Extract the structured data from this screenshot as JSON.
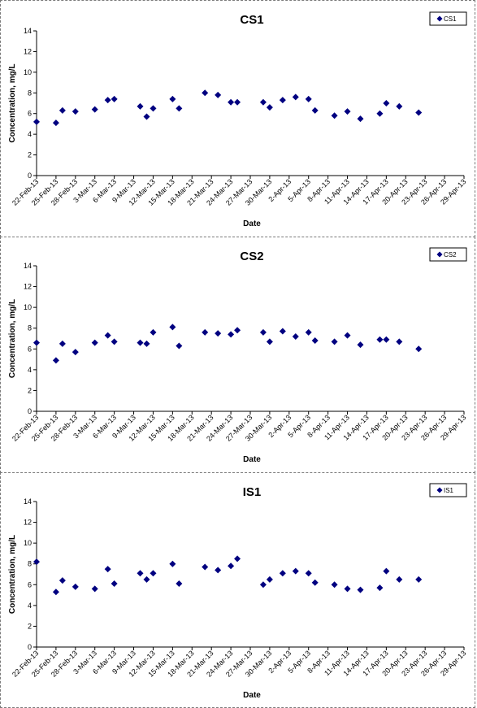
{
  "charts": [
    {
      "type": "scatter",
      "title": "CS1",
      "xlabel": "Date",
      "ylabel": "Concentration, mg/L",
      "ylim": [
        0,
        14
      ],
      "yticks": [
        0,
        2,
        4,
        6,
        8,
        10,
        12,
        14
      ],
      "x_tick_labels": [
        "22-Feb-13",
        "25-Feb-13",
        "28-Feb-13",
        "3-Mar-13",
        "6-Mar-13",
        "9-Mar-13",
        "12-Mar-13",
        "15-Mar-13",
        "18-Mar-13",
        "21-Mar-13",
        "24-Mar-13",
        "27-Mar-13",
        "30-Mar-13",
        "2-Apr-13",
        "5-Apr-13",
        "8-Apr-13",
        "11-Apr-13",
        "14-Apr-13",
        "17-Apr-13",
        "20-Apr-13",
        "23-Apr-13",
        "26-Apr-13",
        "29-Apr-13"
      ],
      "legend": "top-right",
      "grid": false,
      "marker_color": "#000080",
      "series": [
        {
          "name": "CS1",
          "points": [
            [
              "22-Feb-13",
              5.2
            ],
            [
              "25-Feb-13",
              5.1
            ],
            [
              "26-Feb-13",
              6.3
            ],
            [
              "28-Feb-13",
              6.2
            ],
            [
              "3-Mar-13",
              6.4
            ],
            [
              "5-Mar-13",
              7.3
            ],
            [
              "6-Mar-13",
              7.4
            ],
            [
              "10-Mar-13",
              6.7
            ],
            [
              "11-Mar-13",
              5.7
            ],
            [
              "12-Mar-13",
              6.5
            ],
            [
              "15-Mar-13",
              7.4
            ],
            [
              "16-Mar-13",
              6.5
            ],
            [
              "20-Mar-13",
              8.0
            ],
            [
              "22-Mar-13",
              7.8
            ],
            [
              "24-Mar-13",
              7.1
            ],
            [
              "25-Mar-13",
              7.1
            ],
            [
              "29-Mar-13",
              7.1
            ],
            [
              "30-Mar-13",
              6.6
            ],
            [
              "1-Apr-13",
              7.3
            ],
            [
              "3-Apr-13",
              7.6
            ],
            [
              "5-Apr-13",
              7.4
            ],
            [
              "6-Apr-13",
              6.3
            ],
            [
              "9-Apr-13",
              5.8
            ],
            [
              "11-Apr-13",
              6.2
            ],
            [
              "13-Apr-13",
              5.5
            ],
            [
              "16-Apr-13",
              6.0
            ],
            [
              "17-Apr-13",
              7.0
            ],
            [
              "19-Apr-13",
              6.7
            ],
            [
              "22-Apr-13",
              6.1
            ]
          ]
        }
      ]
    },
    {
      "type": "scatter",
      "title": "CS2",
      "xlabel": "Date",
      "ylabel": "Concentration, mg/L",
      "ylim": [
        0,
        14
      ],
      "yticks": [
        0,
        2,
        4,
        6,
        8,
        10,
        12,
        14
      ],
      "x_tick_labels": [
        "22-Feb-13",
        "25-Feb-13",
        "28-Feb-13",
        "3-Mar-13",
        "6-Mar-13",
        "9-Mar-13",
        "12-Mar-13",
        "15-Mar-13",
        "18-Mar-13",
        "21-Mar-13",
        "24-Mar-13",
        "27-Mar-13",
        "30-Mar-13",
        "2-Apr-13",
        "5-Apr-13",
        "8-Apr-13",
        "11-Apr-13",
        "14-Apr-13",
        "17-Apr-13",
        "20-Apr-13",
        "23-Apr-13",
        "26-Apr-13",
        "29-Apr-13"
      ],
      "legend": "top-right",
      "grid": false,
      "marker_color": "#000080",
      "series": [
        {
          "name": "CS2",
          "points": [
            [
              "22-Feb-13",
              6.6
            ],
            [
              "25-Feb-13",
              4.9
            ],
            [
              "26-Feb-13",
              6.5
            ],
            [
              "28-Feb-13",
              5.7
            ],
            [
              "3-Mar-13",
              6.6
            ],
            [
              "5-Mar-13",
              7.3
            ],
            [
              "6-Mar-13",
              6.7
            ],
            [
              "10-Mar-13",
              6.6
            ],
            [
              "11-Mar-13",
              6.5
            ],
            [
              "12-Mar-13",
              7.6
            ],
            [
              "15-Mar-13",
              8.1
            ],
            [
              "16-Mar-13",
              6.3
            ],
            [
              "20-Mar-13",
              7.6
            ],
            [
              "22-Mar-13",
              7.5
            ],
            [
              "24-Mar-13",
              7.4
            ],
            [
              "25-Mar-13",
              7.8
            ],
            [
              "29-Mar-13",
              7.6
            ],
            [
              "30-Mar-13",
              6.7
            ],
            [
              "1-Apr-13",
              7.7
            ],
            [
              "3-Apr-13",
              7.2
            ],
            [
              "5-Apr-13",
              7.6
            ],
            [
              "6-Apr-13",
              6.8
            ],
            [
              "9-Apr-13",
              6.7
            ],
            [
              "11-Apr-13",
              7.3
            ],
            [
              "13-Apr-13",
              6.4
            ],
            [
              "16-Apr-13",
              6.9
            ],
            [
              "17-Apr-13",
              6.9
            ],
            [
              "19-Apr-13",
              6.7
            ],
            [
              "22-Apr-13",
              6.0
            ]
          ]
        }
      ]
    },
    {
      "type": "scatter",
      "title": "IS1",
      "xlabel": "Date",
      "ylabel": "Concentration, mg/L",
      "ylim": [
        0,
        14
      ],
      "yticks": [
        0,
        2,
        4,
        6,
        8,
        10,
        12,
        14
      ],
      "x_tick_labels": [
        "22-Feb-13",
        "25-Feb-13",
        "28-Feb-13",
        "3-Mar-13",
        "6-Mar-13",
        "9-Mar-13",
        "12-Mar-13",
        "15-Mar-13",
        "18-Mar-13",
        "21-Mar-13",
        "24-Mar-13",
        "27-Mar-13",
        "30-Mar-13",
        "2-Apr-13",
        "5-Apr-13",
        "8-Apr-13",
        "11-Apr-13",
        "14-Apr-13",
        "17-Apr-13",
        "20-Apr-13",
        "23-Apr-13",
        "26-Apr-13",
        "29-Apr-13"
      ],
      "legend": "top-right",
      "grid": false,
      "marker_color": "#000080",
      "series": [
        {
          "name": "IS1",
          "points": [
            [
              "22-Feb-13",
              8.2
            ],
            [
              "25-Feb-13",
              5.3
            ],
            [
              "26-Feb-13",
              6.4
            ],
            [
              "28-Feb-13",
              5.8
            ],
            [
              "3-Mar-13",
              5.6
            ],
            [
              "5-Mar-13",
              7.5
            ],
            [
              "6-Mar-13",
              6.1
            ],
            [
              "10-Mar-13",
              7.1
            ],
            [
              "11-Mar-13",
              6.5
            ],
            [
              "12-Mar-13",
              7.1
            ],
            [
              "15-Mar-13",
              8.0
            ],
            [
              "16-Mar-13",
              6.1
            ],
            [
              "20-Mar-13",
              7.7
            ],
            [
              "22-Mar-13",
              7.4
            ],
            [
              "24-Mar-13",
              7.8
            ],
            [
              "25-Mar-13",
              8.5
            ],
            [
              "29-Mar-13",
              6.0
            ],
            [
              "30-Mar-13",
              6.5
            ],
            [
              "1-Apr-13",
              7.1
            ],
            [
              "3-Apr-13",
              7.3
            ],
            [
              "5-Apr-13",
              7.1
            ],
            [
              "6-Apr-13",
              6.2
            ],
            [
              "9-Apr-13",
              6.0
            ],
            [
              "11-Apr-13",
              5.6
            ],
            [
              "13-Apr-13",
              5.5
            ],
            [
              "16-Apr-13",
              5.7
            ],
            [
              "17-Apr-13",
              7.3
            ],
            [
              "19-Apr-13",
              6.5
            ],
            [
              "22-Apr-13",
              6.5
            ]
          ]
        }
      ]
    }
  ]
}
